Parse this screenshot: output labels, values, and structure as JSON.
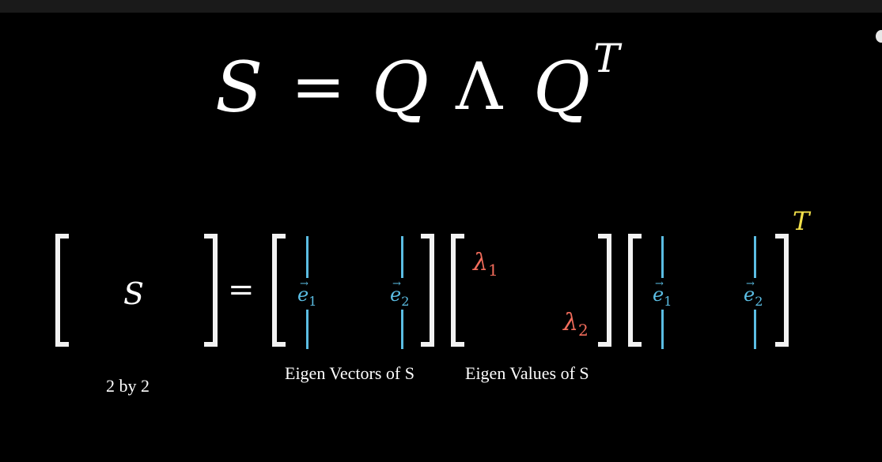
{
  "top_equation": {
    "S": "S",
    "equals": "=",
    "Q": "Q",
    "Lambda": "Λ",
    "Q2": "Q",
    "T": "T"
  },
  "matrix_eq": {
    "S": "S",
    "equals": "=",
    "e1": "e",
    "e2": "e",
    "sub1": "1",
    "sub2": "2",
    "arrow": "→",
    "lambda": "λ",
    "transpose": "T"
  },
  "captions": {
    "size": "2 by 2",
    "vectors": "Eigen Vectors of S",
    "values": "Eigen Values of S"
  },
  "colors": {
    "vector": "#5bbde3",
    "eigenvalue": "#f26c5b",
    "transpose": "#f2e04a",
    "bracket": "#f2f2f2"
  }
}
